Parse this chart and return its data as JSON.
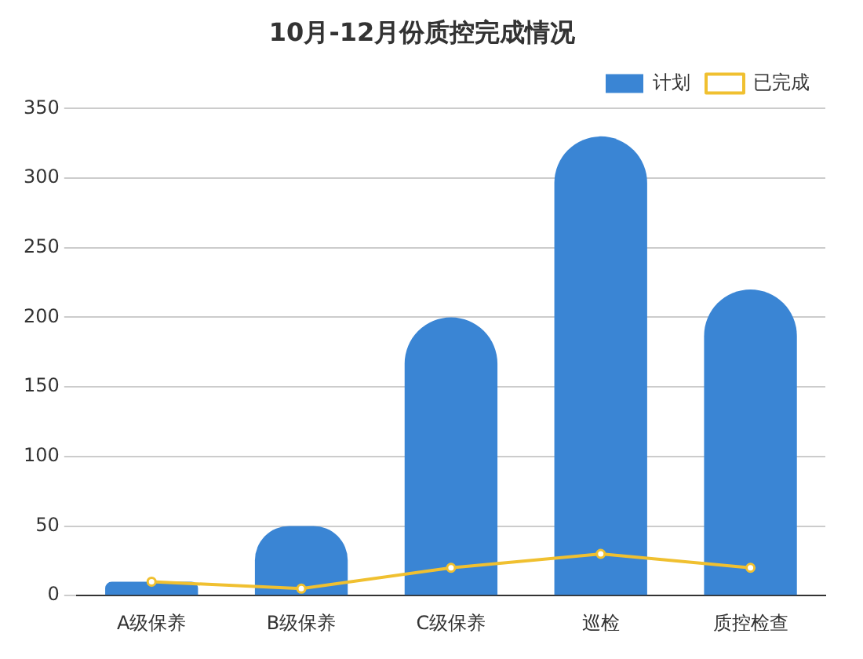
{
  "chart_data": {
    "type": "bar",
    "title": "10月-12月份质控完成情况",
    "categories": [
      "A级保养",
      "B级保养",
      "C级保养",
      "巡检",
      "质控检查"
    ],
    "series": [
      {
        "name": "计划",
        "color": "#3a85d4",
        "values": [
          10,
          50,
          200,
          330,
          220
        ]
      },
      {
        "name": "已完成",
        "type": "line",
        "color": "#f0c030",
        "values": [
          10,
          5,
          20,
          30,
          20
        ]
      }
    ],
    "ylim": [
      0,
      350
    ],
    "yticks": [
      0,
      50,
      100,
      150,
      200,
      250,
      300,
      350
    ],
    "grid": "y",
    "legend": "top right",
    "marker": "circle"
  }
}
